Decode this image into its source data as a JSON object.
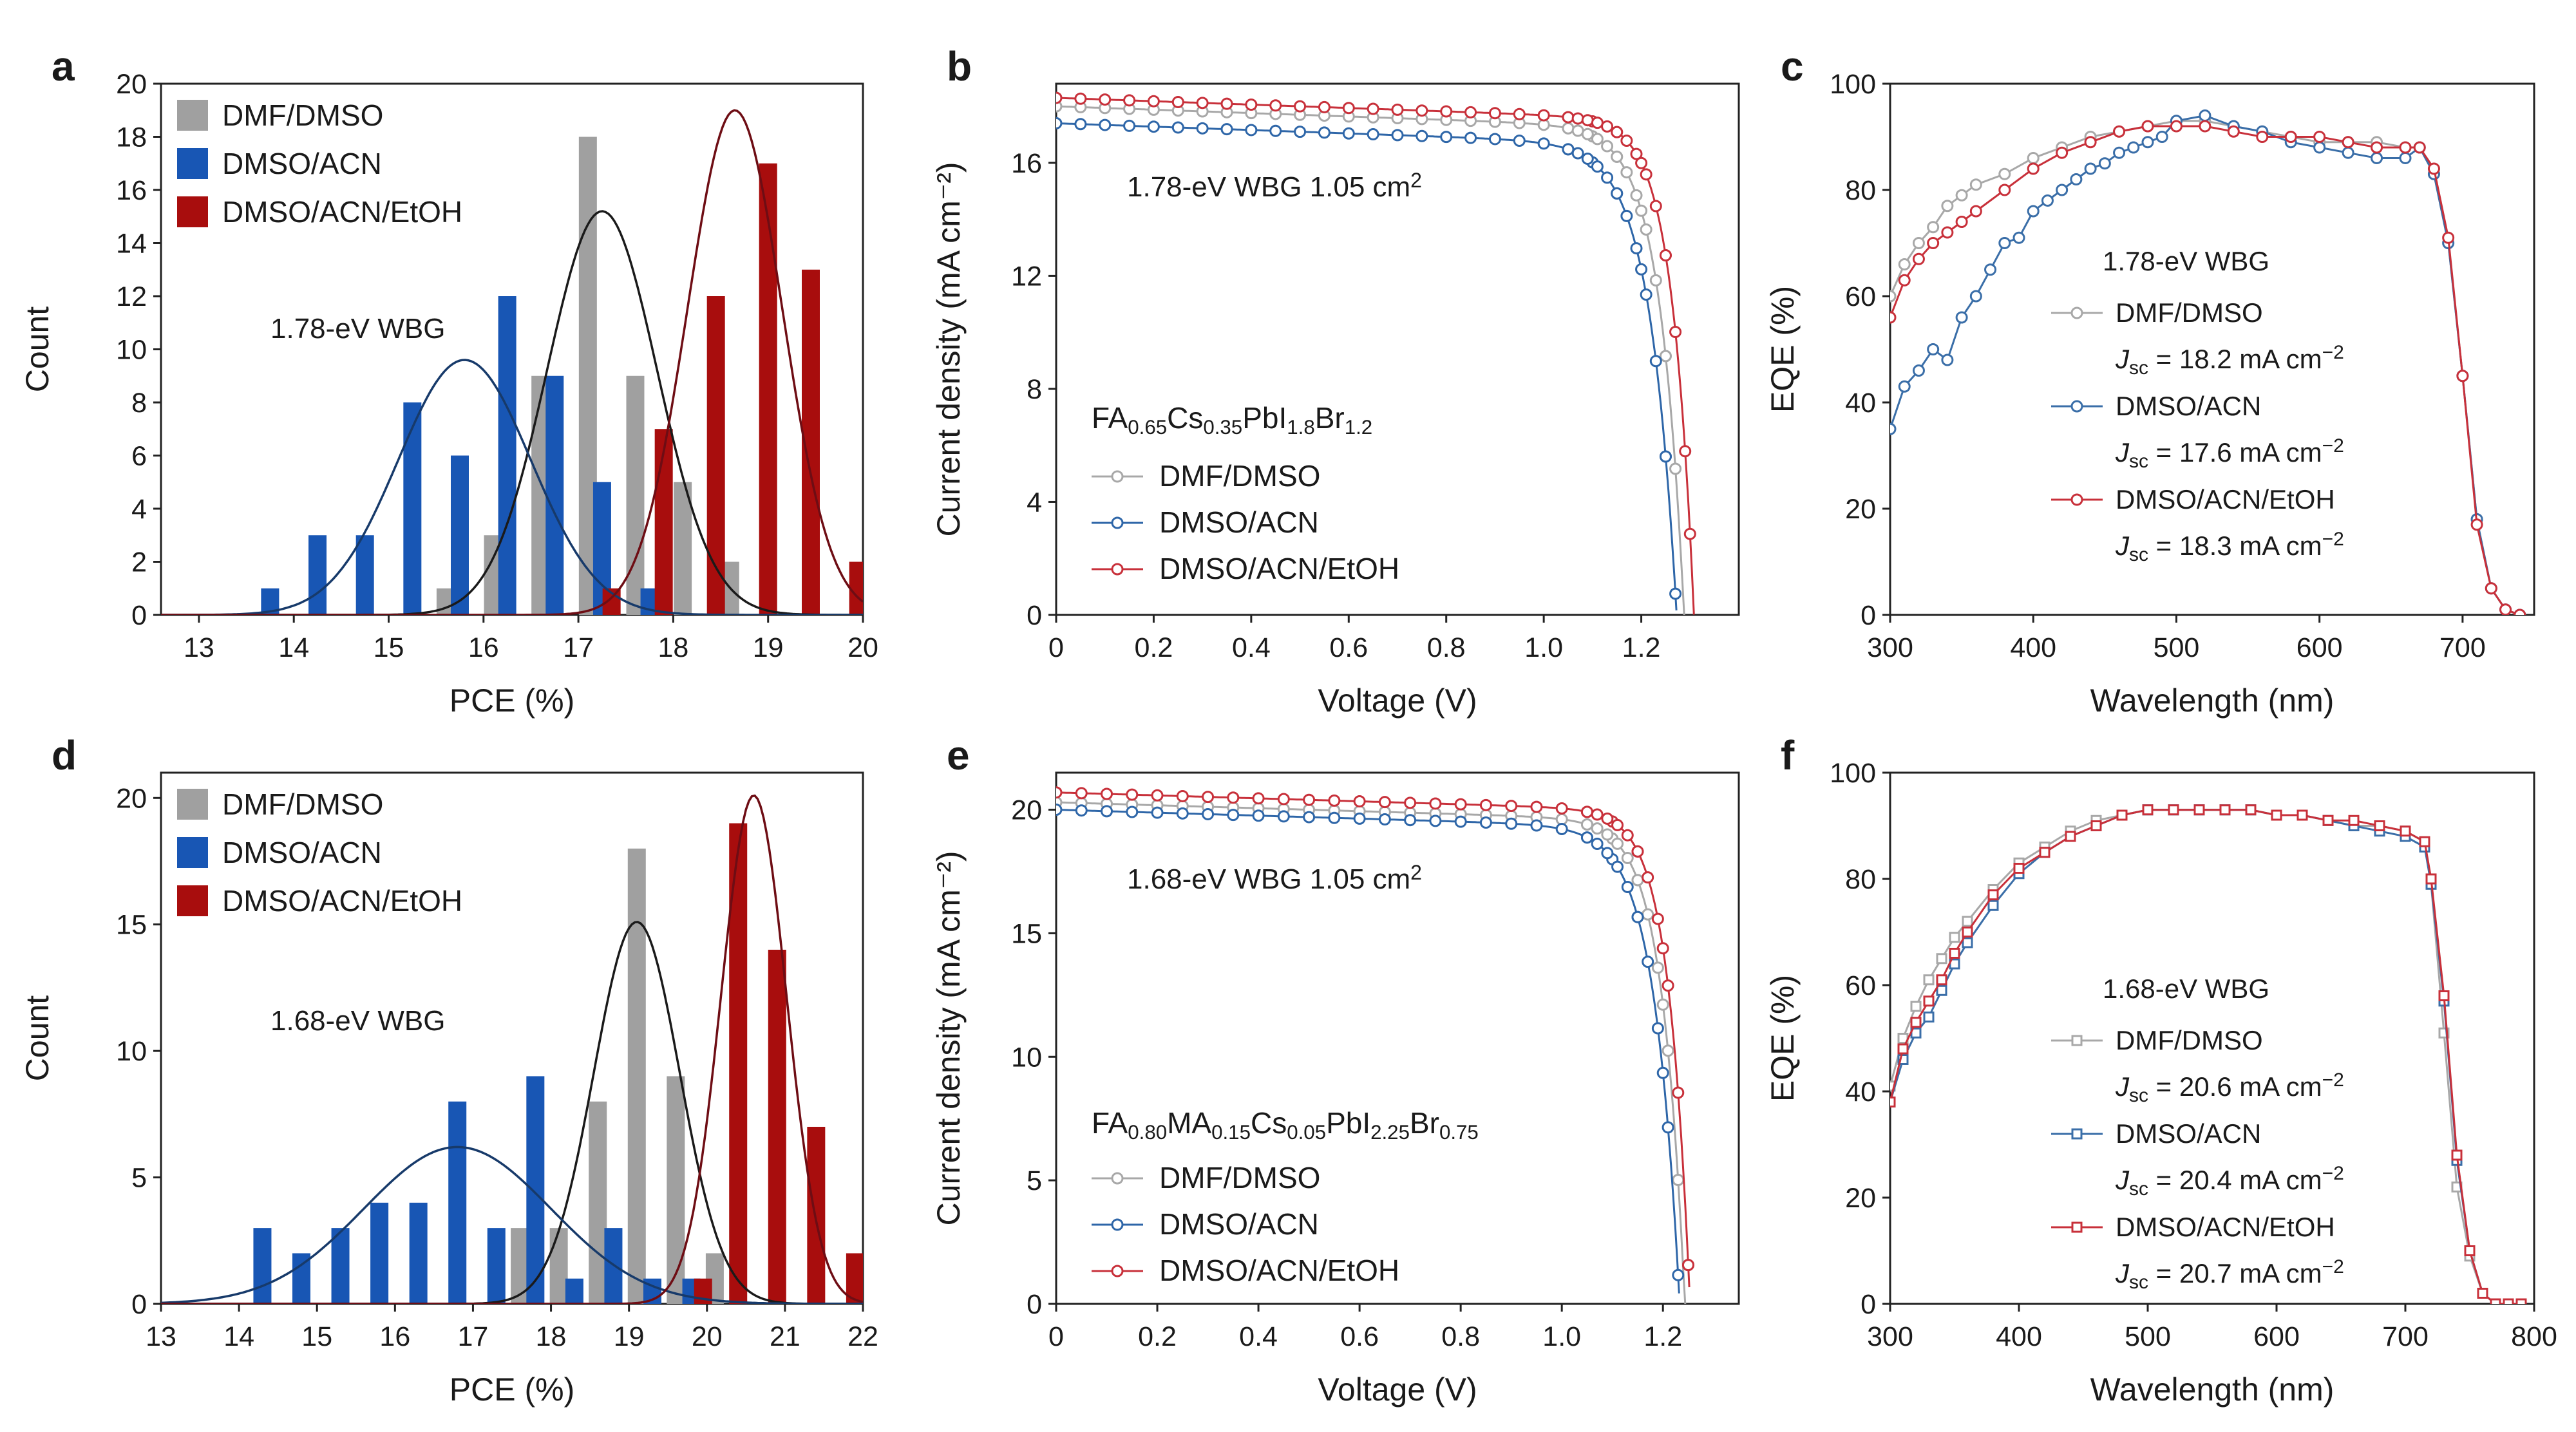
{
  "panels": [
    {
      "id": "a",
      "kind": "hist",
      "box": [
        250,
        130,
        1340,
        955
      ],
      "xlim": [
        12.6,
        20
      ],
      "ylim": [
        0,
        20
      ],
      "xticks": [
        13,
        14,
        15,
        16,
        17,
        18,
        19,
        20
      ],
      "yticks": [
        0,
        2,
        4,
        6,
        8,
        10,
        12,
        14,
        16,
        18,
        20
      ],
      "xlabel": "PCE (%)",
      "ylabel": "Count",
      "annotation": "1.78-eV WBG",
      "series": [
        {
          "name": "DMF/DMSO",
          "color": "#a0a0a0",
          "curve": "#1a1a1a",
          "offset": 0,
          "x": [
            15.6,
            16.1,
            16.6,
            17.1,
            17.6,
            18.1,
            18.6
          ],
          "y": [
            1,
            3,
            9,
            18,
            9,
            5,
            2
          ],
          "fit": {
            "mu": 17.25,
            "sigma": 0.58,
            "peak": 15.2
          }
        },
        {
          "name": "DMSO/ACN",
          "color": "#1856b4",
          "curve": "#173a6a",
          "offset": 0,
          "x": [
            13.75,
            14.25,
            14.75,
            15.25,
            15.75,
            16.25,
            16.75,
            17.25,
            17.75
          ],
          "y": [
            1,
            3,
            3,
            8,
            6,
            12,
            9,
            5,
            1
          ],
          "fit": {
            "mu": 15.8,
            "sigma": 0.7,
            "peak": 9.6
          }
        },
        {
          "name": "DMSO/ACN/EtOH",
          "color": "#a80d0d",
          "curve": "#6e0d14",
          "offset": 0,
          "x": [
            17.35,
            17.9,
            18.45,
            19.0,
            19.45,
            19.95
          ],
          "y": [
            1,
            7,
            12,
            17,
            13,
            2
          ],
          "fit": {
            "mu": 18.65,
            "sigma": 0.5,
            "peak": 19.0
          }
        }
      ]
    },
    {
      "id": "b",
      "kind": "jv",
      "box": [
        1640,
        130,
        2700,
        955
      ],
      "xlim": [
        0,
        1.4
      ],
      "ylim": [
        0,
        18.8
      ],
      "xticks": [
        0,
        0.2,
        0.4,
        0.6,
        0.8,
        1.0,
        1.2
      ],
      "xtickfmt": [
        "0",
        "0.2",
        "0.4",
        "0.6",
        "0.8",
        "1.0",
        "1.2"
      ],
      "yticks": [
        0,
        4,
        8,
        12,
        16
      ],
      "xlabel": "Voltage (V)",
      "ylabel": "Current density (mA cm⁻²)",
      "annotation_sup": {
        "text": "1.78-eV WBG 1.05 cm",
        "sup": "2"
      },
      "formula": [
        [
          "FA",
          ""
        ],
        [
          "0.65",
          "sub"
        ],
        [
          "Cs",
          ""
        ],
        [
          "0.35",
          "sub"
        ],
        [
          "PbI",
          ""
        ],
        [
          "1.8",
          "sub"
        ],
        [
          "Br",
          ""
        ],
        [
          "1.2",
          "sub"
        ]
      ],
      "series": [
        {
          "name": "DMF/DMSO",
          "color": "#a8a8a8",
          "jsc": 18.0,
          "voc": 1.29,
          "n": 0.05
        },
        {
          "name": "DMSO/ACN",
          "color": "#2e66a8",
          "jsc": 17.4,
          "voc": 1.275,
          "n": 0.055
        },
        {
          "name": "DMSO/ACN/EtOH",
          "color": "#c8303a",
          "jsc": 18.3,
          "voc": 1.31,
          "n": 0.045
        }
      ]
    },
    {
      "id": "c",
      "kind": "eqe",
      "box": [
        2935,
        130,
        3935,
        955
      ],
      "xlim": [
        300,
        750
      ],
      "ylim": [
        0,
        100
      ],
      "xticks": [
        300,
        400,
        500,
        600,
        700
      ],
      "yticks": [
        0,
        20,
        40,
        60,
        80,
        100
      ],
      "xlabel": "Wavelength (nm)",
      "ylabel": "EQE (%)",
      "annotation": "1.78-eV WBG",
      "marker": "circle",
      "series": [
        {
          "name": "DMF/DMSO",
          "color": "#a8a8a8",
          "jsc": "= 18.2 mA cm",
          "x": [
            300,
            310,
            320,
            330,
            340,
            350,
            360,
            380,
            400,
            420,
            440,
            460,
            480,
            500,
            520,
            540,
            560,
            580,
            600,
            620,
            640,
            660,
            670,
            680,
            690,
            700,
            710,
            720,
            730,
            740
          ],
          "y": [
            60,
            66,
            70,
            73,
            77,
            79,
            81,
            83,
            86,
            88,
            90,
            91,
            92,
            93,
            93,
            92,
            91,
            90,
            89,
            89,
            89,
            88,
            88,
            83,
            70,
            45,
            18,
            5,
            1,
            0
          ]
        },
        {
          "name": "DMSO/ACN",
          "color": "#3a6ea8",
          "jsc": "= 17.6 mA cm",
          "x": [
            300,
            310,
            320,
            330,
            340,
            350,
            360,
            370,
            380,
            390,
            400,
            410,
            420,
            430,
            440,
            450,
            460,
            470,
            480,
            490,
            500,
            520,
            540,
            560,
            580,
            600,
            620,
            640,
            660,
            670,
            680,
            690,
            700,
            710,
            720,
            730,
            740
          ],
          "y": [
            35,
            43,
            46,
            50,
            48,
            56,
            60,
            65,
            70,
            71,
            76,
            78,
            80,
            82,
            84,
            85,
            87,
            88,
            89,
            90,
            93,
            94,
            92,
            91,
            89,
            88,
            87,
            86,
            86,
            88,
            83,
            70,
            45,
            18,
            5,
            1,
            0
          ]
        },
        {
          "name": "DMSO/ACN/EtOH",
          "color": "#c8303a",
          "jsc": "= 18.3 mA cm",
          "x": [
            300,
            310,
            320,
            330,
            340,
            350,
            360,
            380,
            400,
            420,
            440,
            460,
            480,
            500,
            520,
            540,
            560,
            580,
            600,
            620,
            640,
            660,
            670,
            680,
            690,
            700,
            710,
            720,
            730,
            740
          ],
          "y": [
            56,
            63,
            67,
            70,
            72,
            74,
            76,
            80,
            84,
            87,
            89,
            91,
            92,
            92,
            92,
            91,
            90,
            90,
            90,
            89,
            88,
            88,
            88,
            84,
            71,
            45,
            17,
            5,
            1,
            0
          ]
        }
      ]
    },
    {
      "id": "d",
      "kind": "hist",
      "box": [
        250,
        1200,
        1340,
        2025
      ],
      "xlim": [
        13,
        22
      ],
      "ylim": [
        0,
        21
      ],
      "xticks": [
        13,
        14,
        15,
        16,
        17,
        18,
        19,
        20,
        21,
        22
      ],
      "yticks": [
        0,
        5,
        10,
        15,
        20
      ],
      "xlabel": "PCE (%)",
      "ylabel": "Count",
      "annotation": "1.68-eV WBG",
      "series": [
        {
          "name": "DMF/DMSO",
          "color": "#a0a0a0",
          "curve": "#1a1a1a",
          "offset": 0,
          "x": [
            17.6,
            18.1,
            18.6,
            19.1,
            19.6,
            20.1
          ],
          "y": [
            3,
            3,
            8,
            18,
            9,
            2
          ],
          "fit": {
            "mu": 19.1,
            "sigma": 0.55,
            "peak": 15.1
          }
        },
        {
          "name": "DMSO/ACN",
          "color": "#1856b4",
          "curve": "#173a6a",
          "offset": 0,
          "x": [
            14.3,
            14.8,
            15.3,
            15.8,
            16.3,
            16.8,
            17.3,
            17.8,
            18.3,
            18.8,
            19.3,
            19.8
          ],
          "y": [
            3,
            2,
            3,
            4,
            4,
            8,
            3,
            9,
            1,
            3,
            1,
            1
          ],
          "fit": {
            "mu": 16.8,
            "sigma": 1.2,
            "peak": 6.2
          }
        },
        {
          "name": "DMSO/ACN/EtOH",
          "color": "#a80d0d",
          "curve": "#6e0d14",
          "offset": 0,
          "x": [
            19.95,
            20.4,
            20.9,
            21.4,
            21.9
          ],
          "y": [
            1,
            19,
            14,
            7,
            2
          ],
          "fit": {
            "mu": 20.6,
            "sigma": 0.42,
            "peak": 20.1
          }
        }
      ]
    },
    {
      "id": "e",
      "kind": "jv",
      "box": [
        1640,
        1200,
        2700,
        2025
      ],
      "xlim": [
        0,
        1.35
      ],
      "ylim": [
        0,
        21.5
      ],
      "xticks": [
        0,
        0.2,
        0.4,
        0.6,
        0.8,
        1.0,
        1.2
      ],
      "xtickfmt": [
        "0",
        "0.2",
        "0.4",
        "0.6",
        "0.8",
        "1.0",
        "1.2"
      ],
      "yticks": [
        0,
        5,
        10,
        15,
        20
      ],
      "xlabel": "Voltage (V)",
      "ylabel": "Current density (mA cm⁻²)",
      "annotation_sup": {
        "text": "1.68-eV WBG 1.05 cm",
        "sup": "2"
      },
      "formula": [
        [
          "FA",
          ""
        ],
        [
          "0.80",
          "sub"
        ],
        [
          "MA",
          ""
        ],
        [
          "0.15",
          "sub"
        ],
        [
          "Cs",
          ""
        ],
        [
          "0.05",
          "sub"
        ],
        [
          "PbI",
          ""
        ],
        [
          "2.25",
          "sub"
        ],
        [
          "Br",
          ""
        ],
        [
          "0.75",
          "sub"
        ]
      ],
      "series": [
        {
          "name": "DMF/DMSO",
          "color": "#a8a8a8",
          "jsc": 20.3,
          "voc": 1.245,
          "n": 0.045
        },
        {
          "name": "DMSO/ACN",
          "color": "#2e66a8",
          "jsc": 20.0,
          "voc": 1.235,
          "n": 0.05
        },
        {
          "name": "DMSO/ACN/EtOH",
          "color": "#c8303a",
          "jsc": 20.7,
          "voc": 1.255,
          "n": 0.042
        }
      ]
    },
    {
      "id": "f",
      "kind": "eqe",
      "box": [
        2935,
        1200,
        3935,
        2025
      ],
      "xlim": [
        300,
        800
      ],
      "ylim": [
        0,
        100
      ],
      "xticks": [
        300,
        400,
        500,
        600,
        700,
        800
      ],
      "yticks": [
        0,
        20,
        40,
        60,
        80,
        100
      ],
      "xlabel": "Wavelength (nm)",
      "ylabel": "EQE (%)",
      "annotation": "1.68-eV WBG",
      "marker": "square",
      "series": [
        {
          "name": "DMF/DMSO",
          "color": "#a8a8a8",
          "jsc": "= 20.6 mA cm",
          "x": [
            300,
            310,
            320,
            330,
            340,
            350,
            360,
            380,
            400,
            420,
            440,
            460,
            480,
            500,
            520,
            540,
            560,
            580,
            600,
            620,
            640,
            660,
            680,
            700,
            715,
            720,
            730,
            740,
            750,
            760,
            770,
            780,
            790
          ],
          "y": [
            41,
            50,
            56,
            61,
            65,
            69,
            72,
            78,
            83,
            86,
            89,
            91,
            92,
            93,
            93,
            93,
            93,
            93,
            92,
            92,
            91,
            90,
            90,
            89,
            87,
            79,
            51,
            22,
            9,
            2,
            0,
            0,
            0
          ]
        },
        {
          "name": "DMSO/ACN",
          "color": "#3a6ea8",
          "jsc": "= 20.4 mA cm",
          "x": [
            300,
            310,
            320,
            330,
            340,
            350,
            360,
            380,
            400,
            420,
            440,
            460,
            480,
            500,
            520,
            540,
            560,
            580,
            600,
            620,
            640,
            660,
            680,
            700,
            715,
            720,
            730,
            740,
            750,
            760,
            770,
            780,
            790
          ],
          "y": [
            38,
            46,
            51,
            54,
            59,
            64,
            68,
            75,
            81,
            85,
            88,
            90,
            92,
            93,
            93,
            93,
            93,
            93,
            92,
            92,
            91,
            90,
            89,
            88,
            86,
            79,
            57,
            27,
            10,
            2,
            0,
            0,
            0
          ]
        },
        {
          "name": "DMSO/ACN/EtOH",
          "color": "#c8303a",
          "jsc": "= 20.7 mA cm",
          "x": [
            300,
            310,
            320,
            330,
            340,
            350,
            360,
            380,
            400,
            420,
            440,
            460,
            480,
            500,
            520,
            540,
            560,
            580,
            600,
            620,
            640,
            660,
            680,
            700,
            715,
            720,
            730,
            740,
            750,
            760,
            770,
            780,
            790
          ],
          "y": [
            38,
            48,
            53,
            57,
            61,
            66,
            70,
            77,
            82,
            85,
            88,
            90,
            92,
            93,
            93,
            93,
            93,
            93,
            92,
            92,
            91,
            91,
            90,
            89,
            87,
            80,
            58,
            28,
            10,
            2,
            0,
            0,
            0
          ]
        }
      ]
    }
  ],
  "jsc_label": "J",
  "jsc_sub": "sc",
  "jsc_unit_sup": "−2"
}
